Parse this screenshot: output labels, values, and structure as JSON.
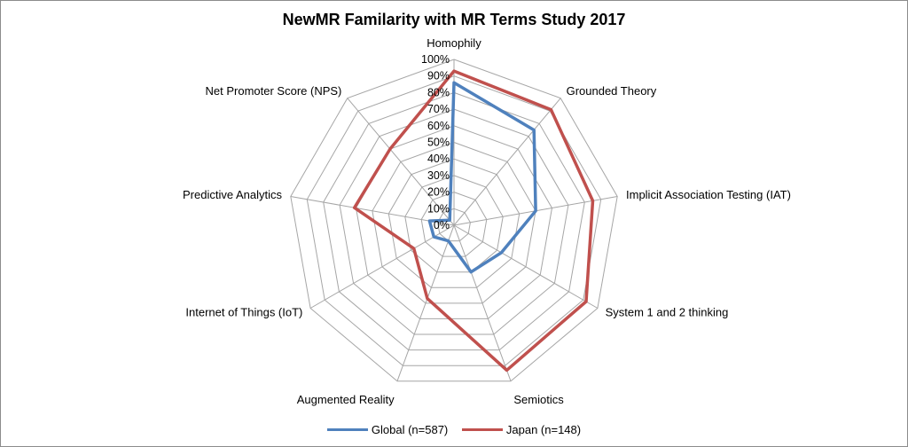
{
  "chart_data": {
    "type": "radar",
    "title": "NewMR Familarity with MR Terms Study 2017",
    "categories": [
      "Homophily",
      "Grounded Theory",
      "Implicit Association Testing (IAT)",
      "System 1 and 2 thinking",
      "Semiotics",
      "Augmented Reality",
      "Internet of Things (IoT)",
      "Predictive Analytics",
      "Net Promoter Score (NPS)"
    ],
    "tick_labels": [
      "0%",
      "10%",
      "20%",
      "30%",
      "40%",
      "50%",
      "60%",
      "70%",
      "80%",
      "90%",
      "100%"
    ],
    "rmax": 100,
    "series": [
      {
        "name": "Global (n=587)",
        "color": "#4f81bd",
        "values": [
          86,
          75,
          50,
          33,
          30,
          10,
          14,
          15,
          4
        ]
      },
      {
        "name": "Japan (n=148)",
        "color": "#c0504d",
        "values": [
          93,
          91,
          85,
          92,
          93,
          47,
          28,
          61,
          60
        ]
      }
    ],
    "legend_position": "bottom",
    "grid": true
  }
}
